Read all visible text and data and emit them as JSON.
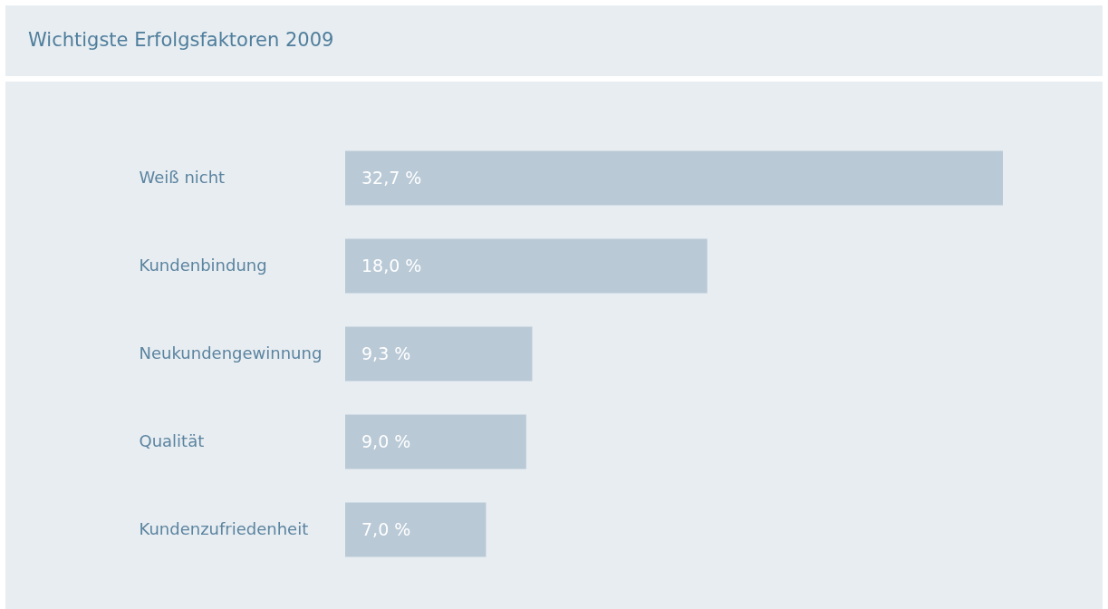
{
  "chart_data": {
    "type": "bar",
    "orientation": "horizontal",
    "title": "Wichtigste Erfolgsfaktoren 2009",
    "categories": [
      "Weiß nicht",
      "Kundenbindung",
      "Neukundengewinnung",
      "Qualität",
      "Kundenzufriedenheit"
    ],
    "values": [
      32.7,
      18.0,
      9.3,
      9.0,
      7.0
    ],
    "value_labels": [
      "32,7 %",
      "18,0 %",
      "9,3 %",
      "9,0 %",
      "7,0 %"
    ],
    "color": "#b9c9d6"
  }
}
